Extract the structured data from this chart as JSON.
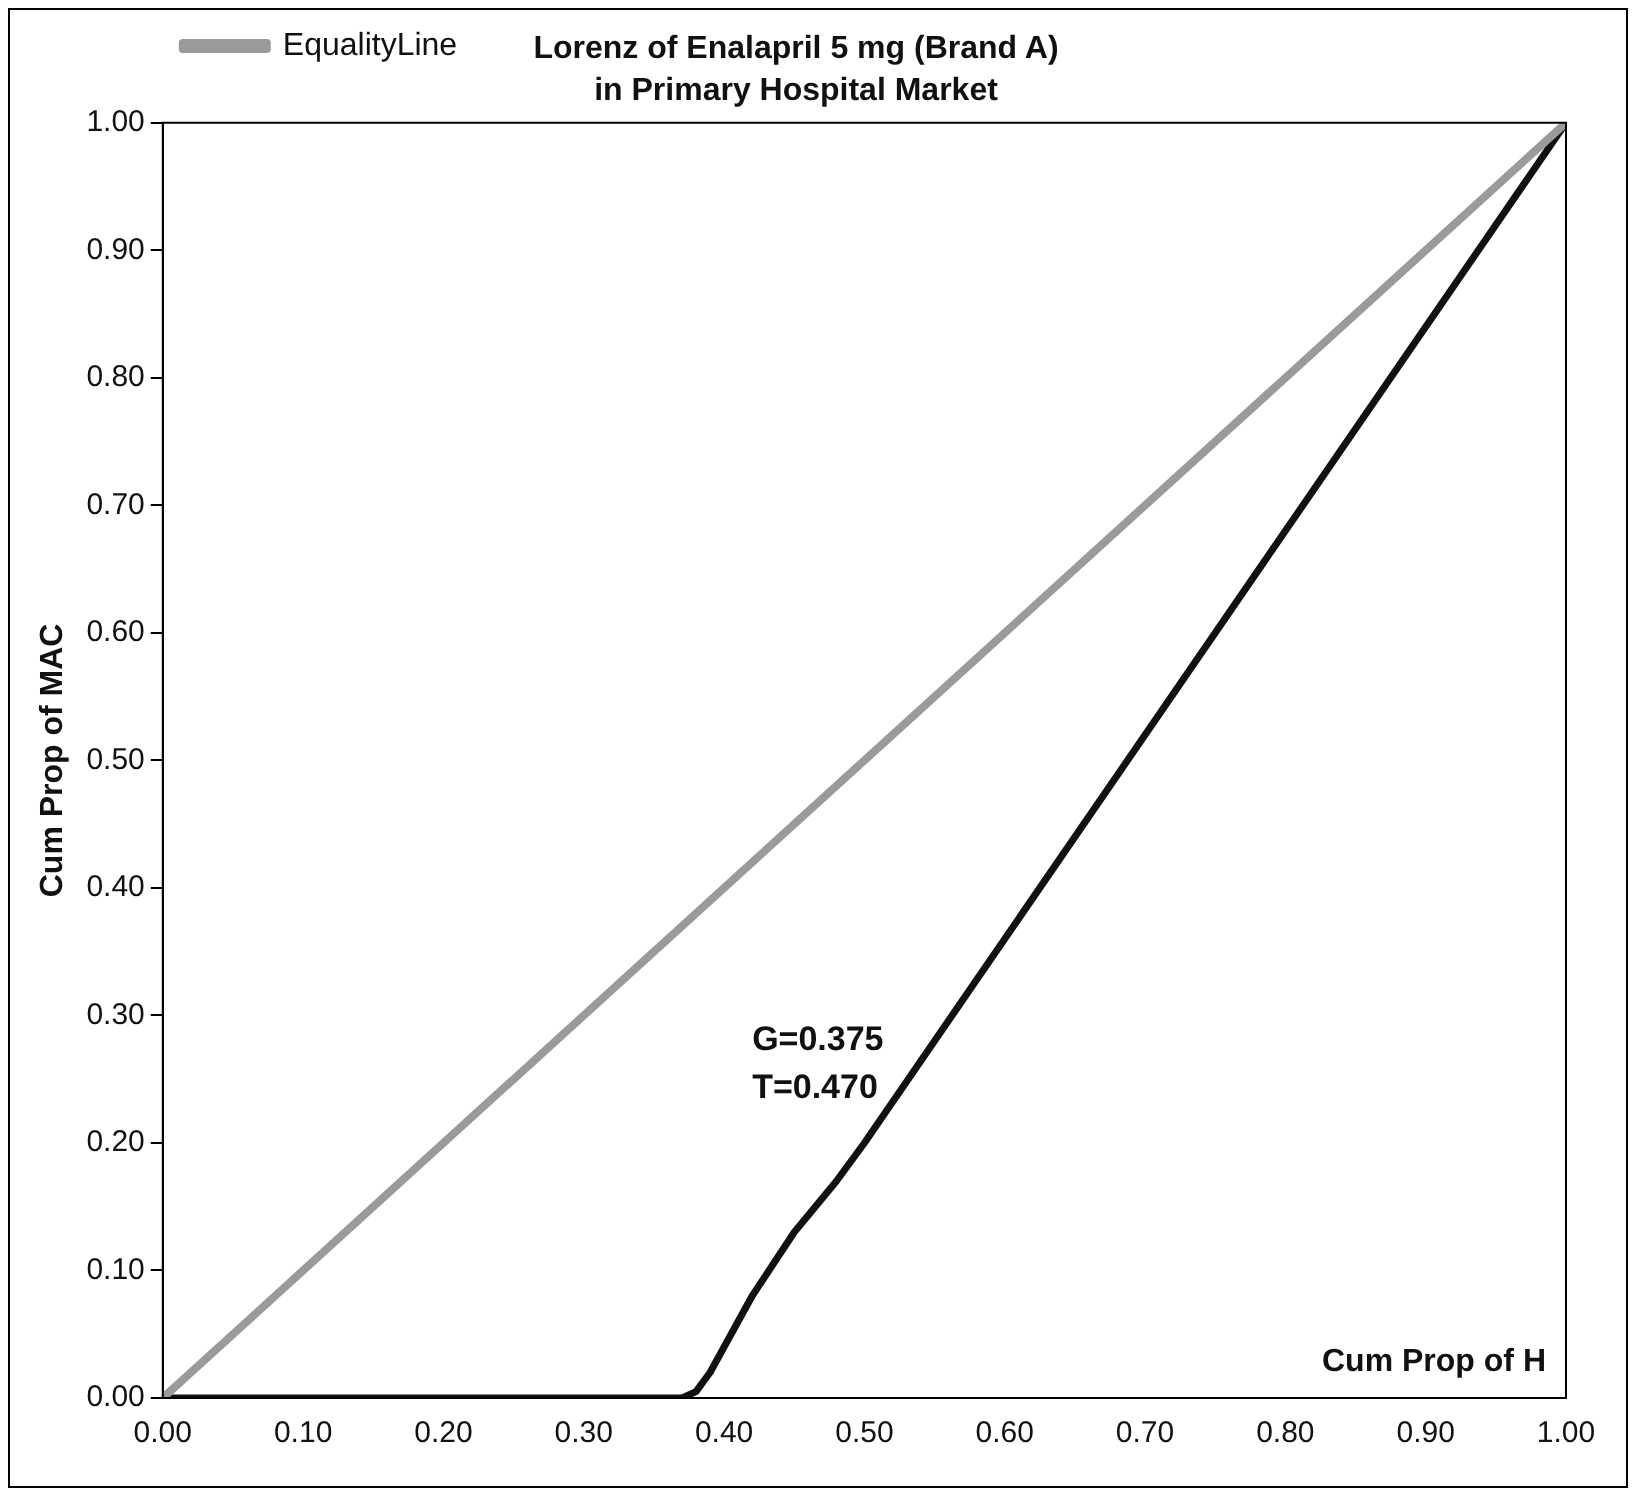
{
  "chart_data": {
    "type": "line",
    "title": "Lorenz of Enalapril 5 mg (Brand A)",
    "subtitle": "in Primary Hospital Market",
    "xlabel": "Cum Prop of H",
    "ylabel": "Cum Prop of MAC",
    "annotations": [
      "G=0.375",
      "T=0.470"
    ],
    "xlim": [
      0,
      1
    ],
    "ylim": [
      0,
      1
    ],
    "xticks": [
      {
        "value": 0,
        "label": "0.00"
      },
      {
        "value": 0.1,
        "label": "0.10"
      },
      {
        "value": 0.2,
        "label": "0.20"
      },
      {
        "value": 0.3,
        "label": "0.30"
      },
      {
        "value": 0.4,
        "label": "0.40"
      },
      {
        "value": 0.5,
        "label": "0.50"
      },
      {
        "value": 0.6,
        "label": "0.60"
      },
      {
        "value": 0.7,
        "label": "0.70"
      },
      {
        "value": 0.8,
        "label": "0.80"
      },
      {
        "value": 0.9,
        "label": "0.90"
      },
      {
        "value": 1,
        "label": "1.00"
      }
    ],
    "yticks": [
      {
        "value": 0,
        "label": "0.00"
      },
      {
        "value": 0.1,
        "label": "0.10"
      },
      {
        "value": 0.2,
        "label": "0.20"
      },
      {
        "value": 0.3,
        "label": "0.30"
      },
      {
        "value": 0.4,
        "label": "0.40"
      },
      {
        "value": 0.5,
        "label": "0.50"
      },
      {
        "value": 0.6,
        "label": "0.60"
      },
      {
        "value": 0.7,
        "label": "0.70"
      },
      {
        "value": 0.8,
        "label": "0.80"
      },
      {
        "value": 0.9,
        "label": "0.90"
      },
      {
        "value": 1,
        "label": "1.00"
      }
    ],
    "grid": false,
    "legend": "top left",
    "marker": "none",
    "line_style": "solid",
    "series": [
      {
        "name": "EqualityLine",
        "color": "#9a9a9a",
        "x": [
          0,
          1
        ],
        "values": [
          0,
          1
        ]
      },
      {
        "color": "#111111",
        "x": [
          0,
          0.37,
          0.38,
          0.39,
          0.4,
          0.42,
          0.45,
          0.48,
          0.5,
          1
        ],
        "values": [
          0,
          0,
          0.005,
          0.02,
          0.04,
          0.08,
          0.13,
          0.17,
          0.2,
          1
        ]
      }
    ]
  }
}
